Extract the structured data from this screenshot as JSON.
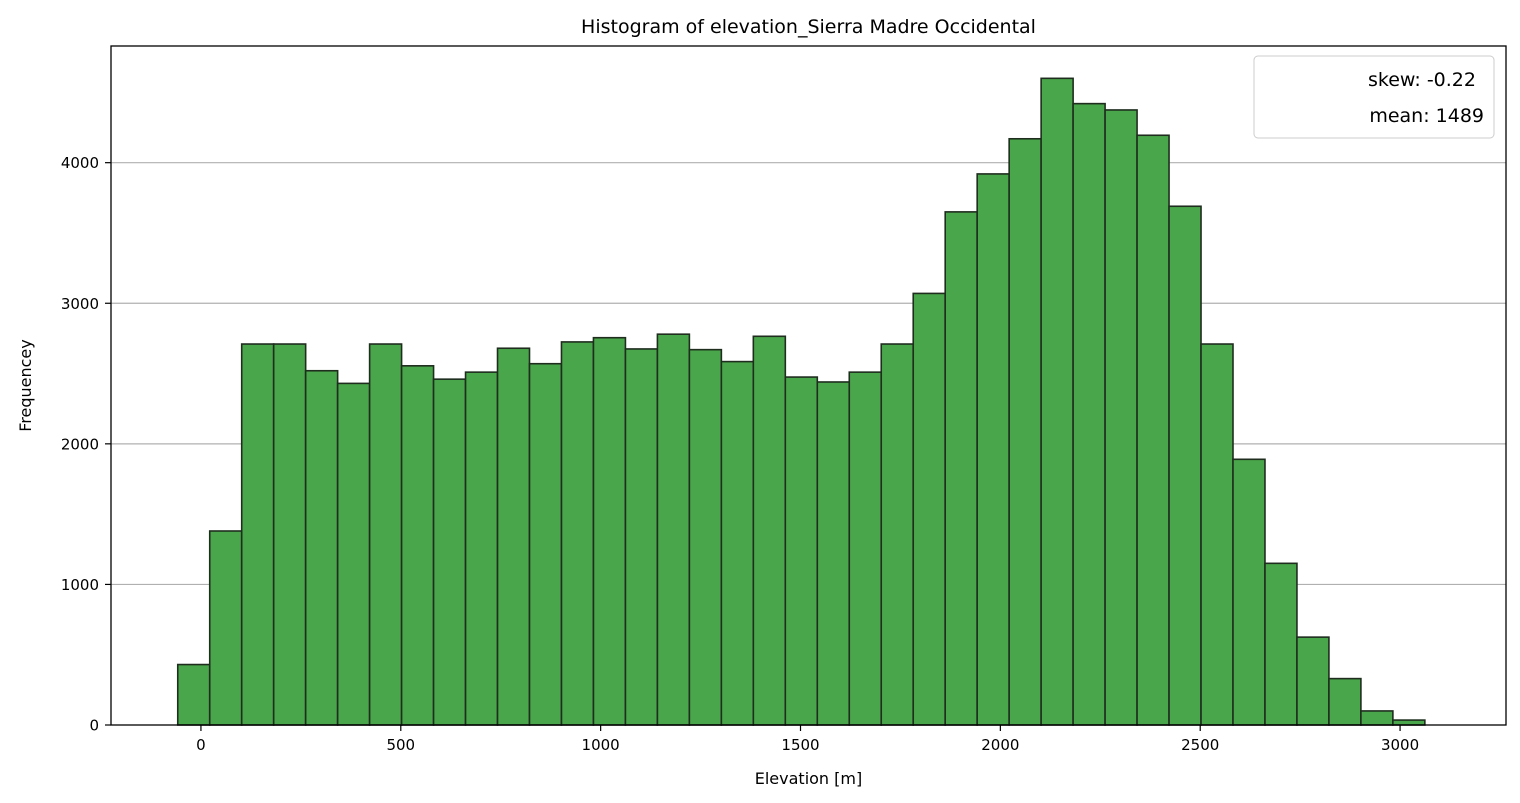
{
  "chart_data": {
    "type": "bar",
    "title": "Histogram of elevation_Sierra Madre Occidental",
    "xlabel": "Elevation [m]",
    "ylabel": "Frequencey",
    "xlim": [
      -225,
      3265
    ],
    "ylim": [
      0,
      4830
    ],
    "x_ticks": [
      0,
      500,
      1000,
      1500,
      2000,
      2500,
      3000
    ],
    "y_ticks": [
      0,
      1000,
      2000,
      3000,
      4000
    ],
    "grid": "y-major",
    "legend_position": "top-right",
    "legend": [
      "skew: -0.22",
      "mean: 1489"
    ],
    "bar_color": "#4aa64a",
    "edge_color": "#1f2d1f",
    "bin_width": 80,
    "bins_start": -58,
    "values": [
      430,
      1380,
      2710,
      2710,
      2520,
      2430,
      2710,
      2555,
      2460,
      2510,
      2680,
      2570,
      2725,
      2755,
      2675,
      2780,
      2670,
      2585,
      2765,
      2475,
      2440,
      2510,
      2710,
      3070,
      3650,
      3920,
      4170,
      4600,
      4420,
      4375,
      4195,
      3690,
      2710,
      1890,
      1150,
      625,
      330,
      100,
      35
    ]
  }
}
